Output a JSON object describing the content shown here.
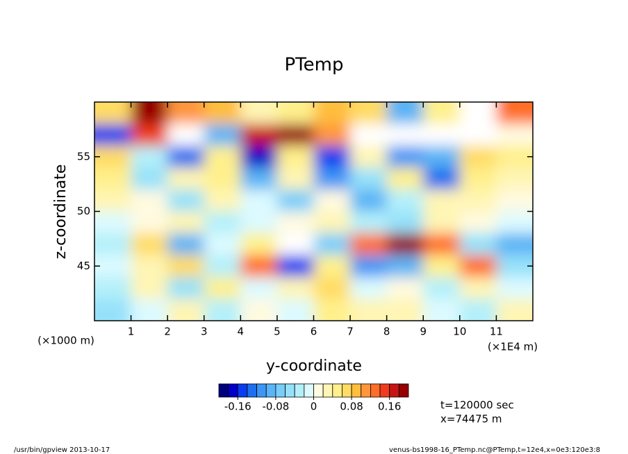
{
  "chart_data": {
    "type": "heatmap",
    "title": "PTemp",
    "x_label": "y-coordinate",
    "y_label": "z-coordinate",
    "x_unit": "(×1E4 m)",
    "y_unit": "(×1000 m)",
    "x": [
      0.5,
      1.5,
      2.5,
      3.5,
      4.5,
      5.5,
      6.5,
      7.5,
      8.5,
      9.5,
      10.5,
      11.5
    ],
    "y": [
      41,
      43,
      45,
      47,
      49,
      51,
      53,
      55,
      57,
      59
    ],
    "values": [
      [
        -0.06,
        -0.02,
        0.02,
        -0.04,
        0.0,
        -0.02,
        0.04,
        0.02,
        0.02,
        -0.02,
        -0.04,
        0.02
      ],
      [
        -0.04,
        0.02,
        -0.06,
        0.04,
        -0.02,
        0.02,
        0.06,
        -0.02,
        0.0,
        -0.04,
        0.02,
        -0.02
      ],
      [
        -0.02,
        0.02,
        0.06,
        -0.04,
        0.12,
        -0.16,
        0.04,
        -0.12,
        -0.1,
        0.04,
        0.12,
        -0.06
      ],
      [
        -0.04,
        0.06,
        -0.1,
        -0.02,
        0.04,
        0.22,
        -0.08,
        0.12,
        0.18,
        0.12,
        -0.06,
        -0.1
      ],
      [
        -0.02,
        0.0,
        0.02,
        -0.04,
        -0.02,
        0.0,
        0.02,
        -0.04,
        -0.06,
        0.02,
        0.0,
        -0.02
      ],
      [
        0.02,
        0.0,
        -0.06,
        0.02,
        -0.02,
        -0.08,
        0.0,
        -0.1,
        -0.04,
        0.02,
        0.02,
        0.0
      ],
      [
        0.04,
        -0.06,
        0.02,
        0.04,
        -0.1,
        0.02,
        -0.12,
        -0.06,
        0.04,
        -0.14,
        0.04,
        0.02
      ],
      [
        0.06,
        -0.04,
        -0.14,
        0.04,
        -0.18,
        0.04,
        -0.16,
        0.02,
        -0.12,
        -0.1,
        0.06,
        0.04
      ],
      [
        -0.16,
        0.14,
        0.2,
        -0.1,
        0.16,
        0.18,
        0.1,
        0.22,
        0.2,
        0.24,
        -0.22,
        0.0
      ],
      [
        0.06,
        0.18,
        0.1,
        0.08,
        0.02,
        0.04,
        0.08,
        0.06,
        -0.1,
        0.04,
        0.22,
        0.12
      ]
    ],
    "xlim": [
      0,
      12
    ],
    "xticks": [
      1,
      2,
      3,
      4,
      5,
      6,
      7,
      8,
      9,
      10,
      11
    ],
    "ylim": [
      40,
      60
    ],
    "yticks": [
      45,
      50,
      55
    ],
    "clim": [
      -0.2,
      0.2
    ],
    "cticks": [
      -0.16,
      -0.08,
      0,
      0.08,
      0.16
    ],
    "colors": [
      "#00007f",
      "#0000c8",
      "#0a3cf0",
      "#1e6ef0",
      "#3c96f5",
      "#5ab4f5",
      "#78cdfa",
      "#96e1fa",
      "#b4f0fa",
      "#dcfaff",
      "#fffae0",
      "#fff5b4",
      "#fff08c",
      "#ffdc64",
      "#ffbe3c",
      "#ff963c",
      "#ff6e28",
      "#f03c1e",
      "#c81414",
      "#960000"
    ],
    "out_of_range_color": "#ffffff",
    "notes": [
      "t=120000 sec",
      "x=74475 m"
    ],
    "footer_left": "/usr/bin/gpview  2013-10-17",
    "footer_right": "venus-bs1998-16_PTemp.nc@PTemp,t=12e4,x=0e3:120e3:8"
  }
}
